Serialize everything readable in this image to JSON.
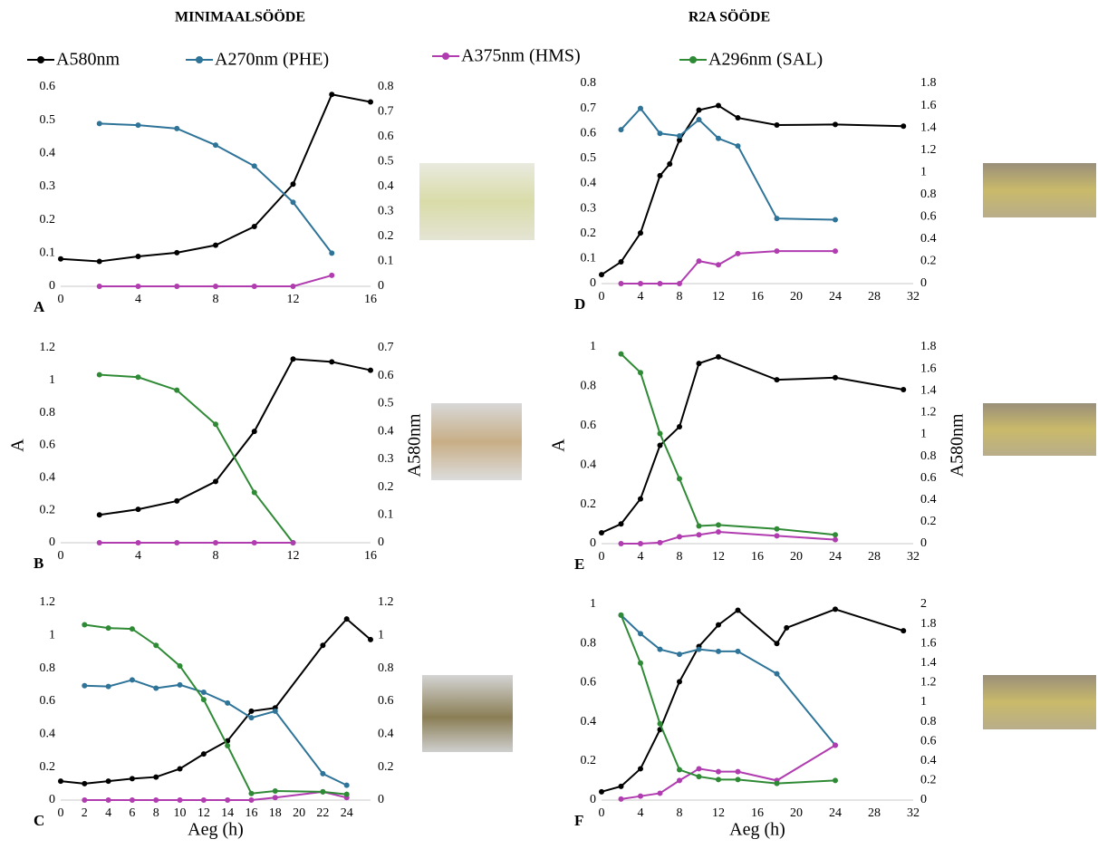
{
  "column_titles": [
    "MINIMAALSÖÖDE",
    "R2A SÖÖDE"
  ],
  "chart_data": [
    {
      "type": "line",
      "label": "A",
      "xlim": [
        0,
        16
      ],
      "xticks": [
        0,
        4,
        8,
        12,
        16
      ],
      "ylim": [
        0,
        0.6
      ],
      "yticks": [
        0,
        0.1,
        0.2,
        0.3,
        0.4,
        0.5,
        0.6
      ],
      "y2lim": [
        0,
        0.8
      ],
      "y2ticks": [
        0,
        0.1,
        0.2,
        0.3,
        0.4,
        0.5,
        0.6,
        0.7,
        0.8
      ],
      "series": [
        {
          "name": "A580nm",
          "color": "#000000",
          "axis": "y2",
          "x": [
            0,
            2,
            4,
            6,
            8,
            10,
            12,
            14,
            16
          ],
          "values": [
            0.11,
            0.1,
            0.12,
            0.135,
            0.165,
            0.24,
            0.41,
            0.77,
            0.74
          ]
        },
        {
          "name": "A270nm (PHE)",
          "color": "#2e7398",
          "x": [
            2,
            4,
            6,
            8,
            10,
            12,
            14
          ],
          "values": [
            0.49,
            0.485,
            0.475,
            0.425,
            0.362,
            0.253,
            0.1
          ]
        },
        {
          "name": "A375nm (HMS)",
          "color": "#b03cb0",
          "x": [
            2,
            4,
            6,
            8,
            10,
            12,
            14
          ],
          "values": [
            0,
            0,
            0,
            0,
            0,
            0,
            0.033
          ]
        }
      ]
    },
    {
      "type": "line",
      "label": "B",
      "ylabel": "A",
      "y2label": "A580nm",
      "xlim": [
        0,
        16
      ],
      "xticks": [
        0,
        4,
        8,
        12,
        16
      ],
      "ylim": [
        0,
        1.2
      ],
      "yticks": [
        0,
        0.2,
        0.4,
        0.6,
        0.8,
        1,
        1.2
      ],
      "y2lim": [
        0,
        0.7
      ],
      "y2ticks": [
        0,
        0.1,
        0.2,
        0.3,
        0.4,
        0.5,
        0.6,
        0.7
      ],
      "series": [
        {
          "name": "A580nm",
          "color": "#000000",
          "axis": "y2",
          "x": [
            2,
            4,
            6,
            8,
            10,
            12,
            14,
            16
          ],
          "values": [
            0.1,
            0.12,
            0.15,
            0.22,
            0.4,
            0.66,
            0.65,
            0.62
          ]
        },
        {
          "name": "A296nm (SAL)",
          "color": "#2f8a35",
          "x": [
            2,
            4,
            6,
            8,
            10,
            12
          ],
          "values": [
            1.035,
            1.02,
            0.94,
            0.73,
            0.31,
            0
          ]
        },
        {
          "name": "A375nm (HMS)",
          "color": "#b03cb0",
          "x": [
            2,
            4,
            6,
            8,
            10,
            12
          ],
          "values": [
            0,
            0,
            0,
            0,
            0,
            0
          ]
        }
      ]
    },
    {
      "type": "line",
      "label": "C",
      "xlabel": "Aeg (h)",
      "xlim": [
        0,
        26
      ],
      "xticks": [
        0,
        2,
        4,
        6,
        8,
        10,
        12,
        14,
        16,
        18,
        20,
        22,
        24
      ],
      "ylim": [
        0,
        1.2
      ],
      "yticks": [
        0,
        0.2,
        0.4,
        0.6,
        0.8,
        1,
        1.2
      ],
      "y2lim": [
        0,
        1.2
      ],
      "y2ticks": [
        0,
        0.2,
        0.4,
        0.6,
        0.8,
        1,
        1.2
      ],
      "series": [
        {
          "name": "A580nm",
          "color": "#000000",
          "axis": "y2",
          "x": [
            0,
            2,
            4,
            6,
            8,
            10,
            12,
            14,
            16,
            18,
            22,
            24,
            26
          ],
          "values": [
            0.115,
            0.1,
            0.115,
            0.13,
            0.14,
            0.19,
            0.28,
            0.36,
            0.54,
            0.56,
            0.94,
            1.1,
            0.975
          ]
        },
        {
          "name": "A270nm (PHE)",
          "color": "#2e7398",
          "x": [
            2,
            4,
            6,
            8,
            10,
            12,
            14,
            16,
            18,
            22,
            24
          ],
          "values": [
            0.695,
            0.69,
            0.73,
            0.68,
            0.7,
            0.655,
            0.59,
            0.5,
            0.54,
            0.16,
            0.09
          ]
        },
        {
          "name": "A375nm (HMS)",
          "color": "#b03cb0",
          "x": [
            2,
            4,
            6,
            8,
            10,
            12,
            14,
            16,
            18,
            22,
            24
          ],
          "values": [
            0,
            0,
            0,
            0,
            0,
            0,
            0,
            0,
            0.015,
            0.05,
            0.015
          ]
        },
        {
          "name": "A296nm (SAL)",
          "color": "#2f8a35",
          "x": [
            2,
            4,
            6,
            8,
            10,
            12,
            14,
            16,
            18,
            22,
            24
          ],
          "values": [
            1.065,
            1.045,
            1.04,
            0.94,
            0.815,
            0.61,
            0.33,
            0.04,
            0.055,
            0.05,
            0.035
          ]
        }
      ]
    },
    {
      "type": "line",
      "label": "D",
      "xlim": [
        0,
        32
      ],
      "xticks": [
        0,
        4,
        8,
        12,
        16,
        20,
        24,
        28,
        32
      ],
      "ylim": [
        0,
        0.8
      ],
      "yticks": [
        0,
        0.1,
        0.2,
        0.3,
        0.4,
        0.5,
        0.6,
        0.7,
        0.8
      ],
      "y2lim": [
        0,
        1.8
      ],
      "y2ticks": [
        0,
        0.2,
        0.4,
        0.6,
        0.8,
        1,
        1.2,
        1.4,
        1.6,
        1.8
      ],
      "series": [
        {
          "name": "A580nm",
          "color": "#000000",
          "axis": "y2",
          "x": [
            0,
            2,
            4,
            6,
            7,
            8,
            10,
            12,
            14,
            18,
            24,
            31
          ],
          "values": [
            0.08,
            0.195,
            0.455,
            0.97,
            1.075,
            1.29,
            1.56,
            1.6,
            1.49,
            1.425,
            1.43,
            1.415
          ]
        },
        {
          "name": "A270nm (PHE)",
          "color": "#2e7398",
          "x": [
            2,
            4,
            6,
            8,
            10,
            12,
            14,
            18,
            24
          ],
          "values": [
            0.615,
            0.7,
            0.6,
            0.59,
            0.655,
            0.58,
            0.55,
            0.26,
            0.255
          ]
        },
        {
          "name": "A375nm (HMS)",
          "color": "#b03cb0",
          "x": [
            2,
            4,
            6,
            8,
            10,
            12,
            14,
            18,
            24
          ],
          "values": [
            0,
            0,
            0,
            0,
            0.09,
            0.075,
            0.12,
            0.13,
            0.13
          ]
        }
      ]
    },
    {
      "type": "line",
      "label": "E",
      "ylabel": "A",
      "y2label": "A580nm",
      "xlim": [
        0,
        32
      ],
      "xticks": [
        0,
        4,
        8,
        12,
        16,
        20,
        24,
        28,
        32
      ],
      "ylim": [
        0,
        1
      ],
      "yticks": [
        0,
        0.2,
        0.4,
        0.6,
        0.8,
        1
      ],
      "y2lim": [
        0,
        1.8
      ],
      "y2ticks": [
        0,
        0.2,
        0.4,
        0.6,
        0.8,
        1,
        1.2,
        1.4,
        1.6,
        1.8
      ],
      "series": [
        {
          "name": "A580nm",
          "color": "#000000",
          "axis": "y2",
          "x": [
            0,
            2,
            4,
            6,
            8,
            10,
            12,
            18,
            24,
            31
          ],
          "values": [
            0.1,
            0.18,
            0.41,
            0.9,
            1.07,
            1.65,
            1.71,
            1.5,
            1.52,
            1.41
          ]
        },
        {
          "name": "A296nm (SAL)",
          "color": "#2f8a35",
          "x": [
            2,
            4,
            6,
            8,
            10,
            12,
            18,
            24
          ],
          "values": [
            0.965,
            0.87,
            0.56,
            0.33,
            0.09,
            0.095,
            0.075,
            0.045
          ]
        },
        {
          "name": "A375nm (HMS)",
          "color": "#b03cb0",
          "x": [
            2,
            4,
            6,
            8,
            10,
            12,
            18,
            24
          ],
          "values": [
            0,
            0,
            0.005,
            0.035,
            0.045,
            0.06,
            0.04,
            0.02
          ]
        }
      ]
    },
    {
      "type": "line",
      "label": "F",
      "xlabel": "Aeg (h)",
      "xlim": [
        0,
        32
      ],
      "xticks": [
        0,
        4,
        8,
        12,
        16,
        20,
        24,
        28,
        32
      ],
      "ylim": [
        0,
        1
      ],
      "yticks": [
        0,
        0.2,
        0.4,
        0.6,
        0.8,
        1
      ],
      "y2lim": [
        0,
        2
      ],
      "y2ticks": [
        0,
        0.2,
        0.4,
        0.6,
        0.8,
        1,
        1.2,
        1.4,
        1.6,
        1.8,
        2
      ],
      "series": [
        {
          "name": "A580nm",
          "color": "#000000",
          "axis": "y2",
          "x": [
            0,
            2,
            4,
            6,
            8,
            10,
            12,
            14,
            18,
            19,
            24,
            31
          ],
          "values": [
            0.085,
            0.14,
            0.32,
            0.72,
            1.21,
            1.57,
            1.79,
            1.94,
            1.6,
            1.76,
            1.95,
            1.73
          ]
        },
        {
          "name": "A270nm (PHE)",
          "color": "#2e7398",
          "x": [
            2,
            4,
            6,
            8,
            10,
            12,
            14,
            18,
            24
          ],
          "values": [
            0.945,
            0.85,
            0.77,
            0.745,
            0.77,
            0.76,
            0.76,
            0.645,
            0.28
          ]
        },
        {
          "name": "A375nm (HMS)",
          "color": "#b03cb0",
          "x": [
            2,
            4,
            6,
            8,
            10,
            12,
            14,
            18,
            24
          ],
          "values": [
            0.005,
            0.02,
            0.035,
            0.1,
            0.16,
            0.145,
            0.145,
            0.1,
            0.28
          ]
        },
        {
          "name": "A296nm (SAL)",
          "color": "#2f8a35",
          "x": [
            2,
            4,
            6,
            8,
            10,
            12,
            14,
            18,
            24
          ],
          "values": [
            0.945,
            0.7,
            0.39,
            0.155,
            0.12,
            0.105,
            0.105,
            0.085,
            0.1
          ]
        }
      ]
    }
  ]
}
